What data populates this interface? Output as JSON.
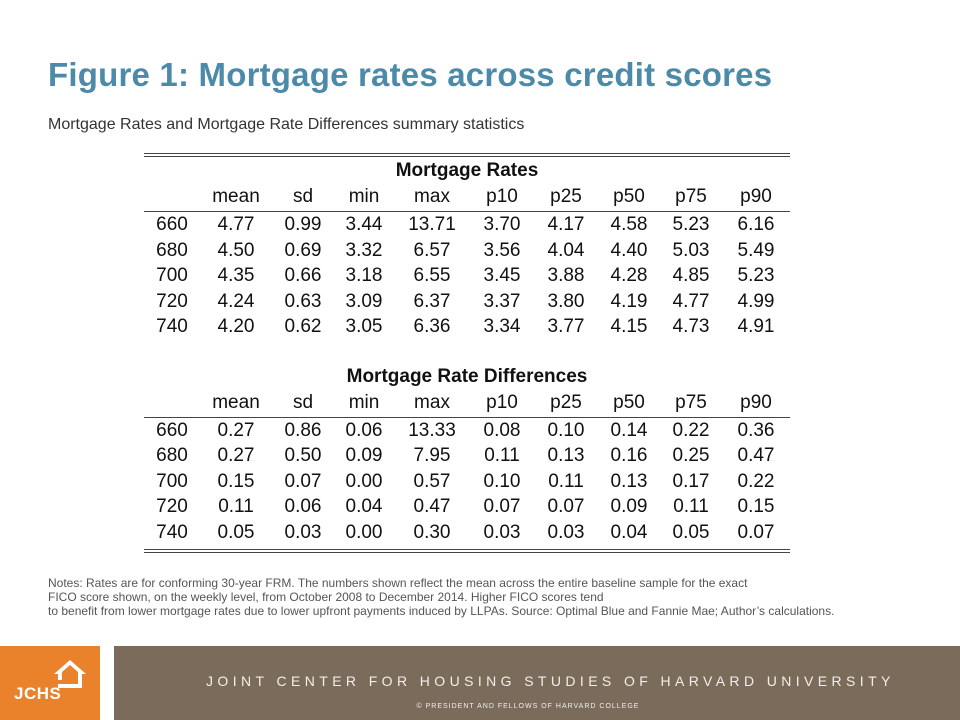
{
  "title": "Figure 1: Mortgage rates across credit scores",
  "subtitle": "Mortgage Rates and Mortgage Rate Differences summary statistics",
  "columns": [
    "mean",
    "sd",
    "min",
    "max",
    "p10",
    "p25",
    "p50",
    "p75",
    "p90"
  ],
  "rates": {
    "heading": "Mortgage Rates",
    "rows": [
      [
        "660",
        "4.77",
        "0.99",
        "3.44",
        "13.71",
        "3.70",
        "4.17",
        "4.58",
        "5.23",
        "6.16"
      ],
      [
        "680",
        "4.50",
        "0.69",
        "3.32",
        "6.57",
        "3.56",
        "4.04",
        "4.40",
        "5.03",
        "5.49"
      ],
      [
        "700",
        "4.35",
        "0.66",
        "3.18",
        "6.55",
        "3.45",
        "3.88",
        "4.28",
        "4.85",
        "5.23"
      ],
      [
        "720",
        "4.24",
        "0.63",
        "3.09",
        "6.37",
        "3.37",
        "3.80",
        "4.19",
        "4.77",
        "4.99"
      ],
      [
        "740",
        "4.20",
        "0.62",
        "3.05",
        "6.36",
        "3.34",
        "3.77",
        "4.15",
        "4.73",
        "4.91"
      ]
    ]
  },
  "differences": {
    "heading": "Mortgage Rate Differences",
    "rows": [
      [
        "660",
        "0.27",
        "0.86",
        "0.06",
        "13.33",
        "0.08",
        "0.10",
        "0.14",
        "0.22",
        "0.36"
      ],
      [
        "680",
        "0.27",
        "0.50",
        "0.09",
        "7.95",
        "0.11",
        "0.13",
        "0.16",
        "0.25",
        "0.47"
      ],
      [
        "700",
        "0.15",
        "0.07",
        "0.00",
        "0.57",
        "0.10",
        "0.11",
        "0.13",
        "0.17",
        "0.22"
      ],
      [
        "720",
        "0.11",
        "0.06",
        "0.04",
        "0.47",
        "0.07",
        "0.07",
        "0.09",
        "0.11",
        "0.15"
      ],
      [
        "740",
        "0.05",
        "0.03",
        "0.00",
        "0.30",
        "0.03",
        "0.03",
        "0.04",
        "0.05",
        "0.07"
      ]
    ]
  },
  "notes": {
    "line1": "Notes: Rates are for conforming 30-year FRM. The numbers shown reflect the mean across the entire baseline sample for the exact",
    "line2": "FICO score shown, on the weekly level, from October 2008 to December 2014. Higher FICO scores tend",
    "line3": "to benefit from lower mortgage rates due to lower upfront payments induced by LLPAs. Source: Optimal Blue and Fannie Mae; Author’s calculations."
  },
  "footer": {
    "logo_text": "JCHS",
    "logo_icon": "house-icon",
    "org_name": "JOINT CENTER FOR HOUSING STUDIES OF HARVARD UNIVERSITY",
    "copyright": "© PRESIDENT  AND FELLOWS  OF  HARVARD  COLLEGE"
  },
  "colors": {
    "title": "#4b8aa8",
    "footer_bg": "#7b6b5b",
    "logo_bg": "#e9822a"
  }
}
